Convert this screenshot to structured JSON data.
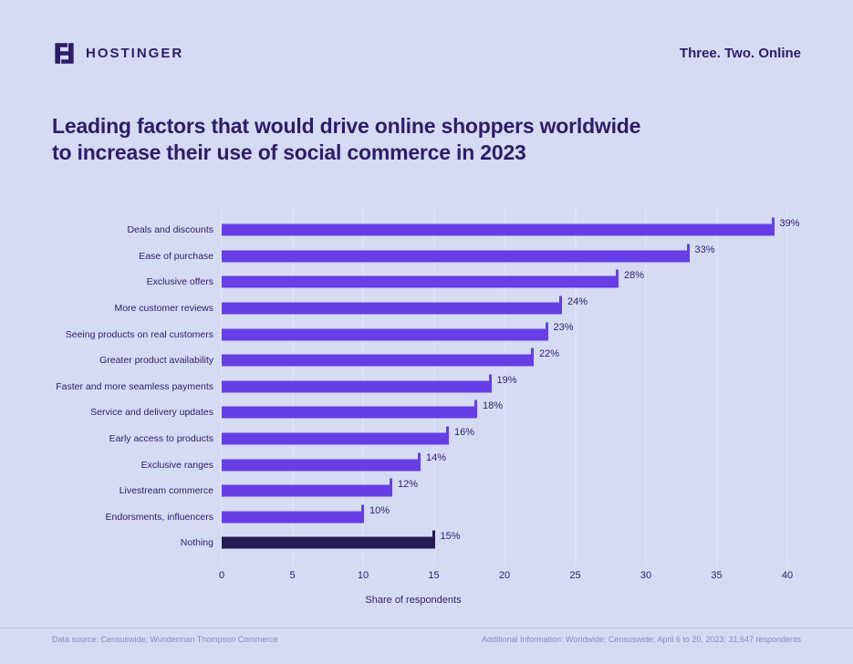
{
  "header": {
    "brand": "HOSTINGER",
    "tagline": "Three. Two. Online"
  },
  "title_lines": [
    "Leading factors that would drive online shoppers worldwide",
    "to increase their use of social commerce in 2023"
  ],
  "chart_data": {
    "type": "bar",
    "orientation": "horizontal",
    "title": "Leading factors that would drive online shoppers worldwide to increase their use of social commerce in 2023",
    "categories": [
      "Deals and discounts",
      "Ease of purchase",
      "Exclusive offers",
      "More customer reviews",
      "Seeing products on real customers",
      "Greater product availability",
      "Faster and more seamless payments",
      "Service and delivery updates",
      "Early access to products",
      "Exclusive ranges",
      "Livestream commerce",
      "Endorsments, influencers",
      "Nothing"
    ],
    "values": [
      39,
      33,
      28,
      24,
      23,
      22,
      19,
      18,
      16,
      14,
      12,
      10,
      15
    ],
    "unit": "%",
    "xlabel": "Share of respondents",
    "xlim": [
      0,
      40
    ],
    "xticks": [
      0,
      5,
      10,
      15,
      20,
      25,
      30,
      35,
      40
    ],
    "grid": true,
    "legend_position": "none",
    "bar_color": "#673de6",
    "highlight_category": "Nothing",
    "highlight_color": "#271b54"
  },
  "footer": {
    "source": "Data source: Censuswide; Wunderman Thompson Commerce",
    "additional": "Additional Information: Worldwide; Censuswide; April 6 to 20, 2023; 31,647 respondents"
  },
  "colors": {
    "background": "#d5dbf2",
    "text": "#2f1c6a",
    "accent": "#673de6",
    "highlight": "#271b54",
    "gridline": "#e3e7f9"
  }
}
